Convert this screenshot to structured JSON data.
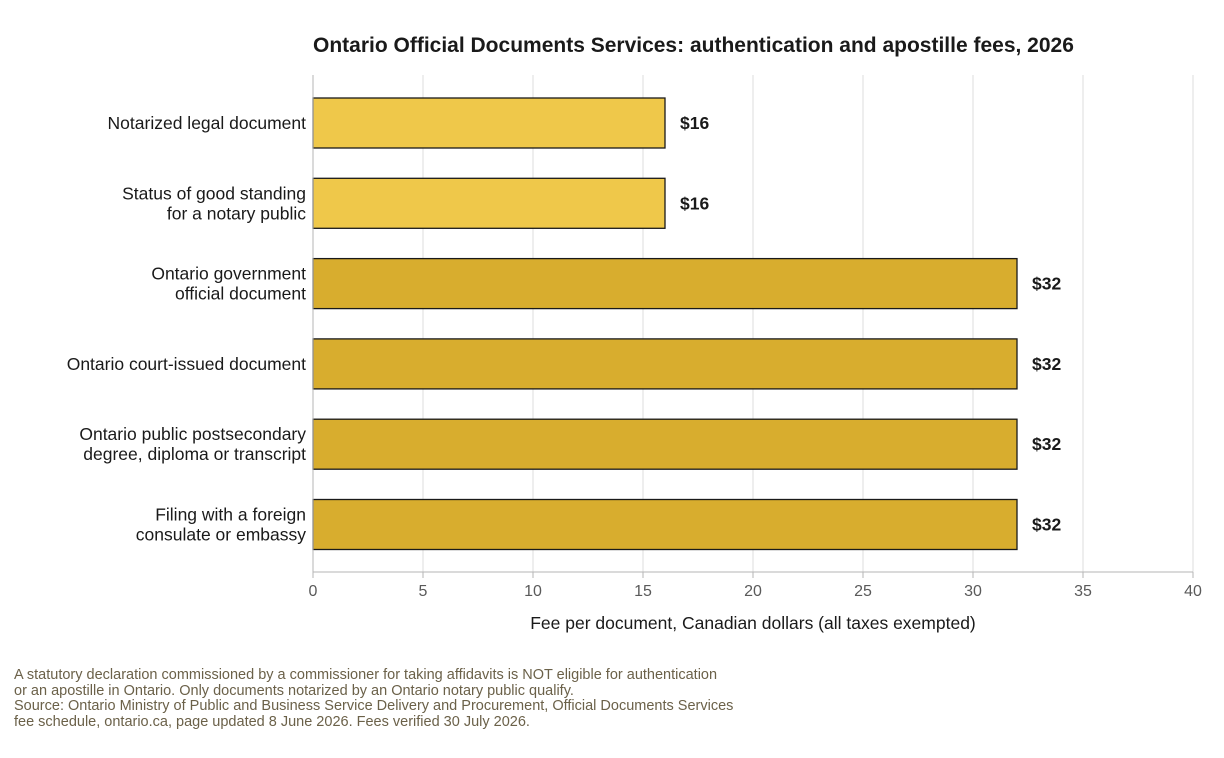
{
  "chart_data": {
    "type": "bar",
    "orientation": "horizontal",
    "title": "Ontario Official Documents Services: authentication and apostille fees, 2026",
    "categories": [
      [
        "Notarized legal document"
      ],
      [
        "Status of good standing",
        "for a notary public"
      ],
      [
        "Ontario government",
        "official document"
      ],
      [
        "Ontario court-issued document"
      ],
      [
        "Ontario public postsecondary",
        "degree, diploma or transcript"
      ],
      [
        "Filing with a foreign",
        "consulate or embassy"
      ]
    ],
    "values": [
      16,
      16,
      32,
      32,
      32,
      32
    ],
    "value_labels": [
      "$16",
      "$16",
      "$32",
      "$32",
      "$32",
      "$32"
    ],
    "bar_colors": [
      "#efc84a",
      "#efc84a",
      "#d8ad2e",
      "#d8ad2e",
      "#d8ad2e",
      "#d8ad2e"
    ],
    "xlabel": "Fee per document, Canadian dollars (all taxes exempted)",
    "xlim": [
      0,
      40
    ],
    "xticks": [
      0,
      5,
      10,
      15,
      20,
      25,
      30,
      35,
      40
    ],
    "grid": "vertical"
  },
  "footnote": [
    "A statutory declaration commissioned by a commissioner for taking affidavits is NOT eligible for authentication",
    "or an apostille in Ontario. Only documents notarized by an Ontario notary public qualify.",
    "Source: Ontario Ministry of Public and Business Service Delivery and Procurement, Official Documents Services",
    "fee schedule, ontario.ca, page updated 8 June 2026. Fees verified 30 July 2026."
  ]
}
